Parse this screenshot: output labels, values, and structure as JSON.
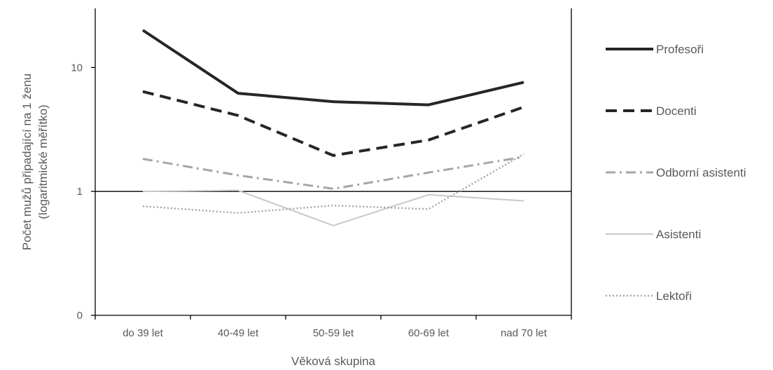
{
  "chart_data": {
    "type": "line",
    "xlabel": "Věková skupina",
    "ylabel": "Počet mužů připadající na 1 ženu",
    "ylabel_sub": "(logaritmické měřítko)",
    "y_scale": "log",
    "ylim": [
      0.1,
      30
    ],
    "yticks": [
      {
        "value": 0.1,
        "label": "0"
      },
      {
        "value": 1,
        "label": "1"
      },
      {
        "value": 10,
        "label": "10"
      }
    ],
    "categories": [
      "do 39 let",
      "40-49 let",
      "50-59 let",
      "60-69 let",
      "nad 70 let"
    ],
    "grid": false,
    "legend_position": "right",
    "series": [
      {
        "name": "Profesoři",
        "values": [
          20.0,
          6.2,
          5.3,
          5.0,
          7.6
        ],
        "color": "#262626",
        "style": "solid",
        "width": 4
      },
      {
        "name": "Docenti",
        "values": [
          6.4,
          4.1,
          1.95,
          2.6,
          4.8
        ],
        "color": "#262626",
        "style": "dashed",
        "width": 4
      },
      {
        "name": "Odborní asistenti",
        "values": [
          1.83,
          1.35,
          1.05,
          1.42,
          1.9
        ],
        "color": "#a6a6a6",
        "style": "dashdot",
        "width": 3
      },
      {
        "name": "Asistenti",
        "values": [
          1.0,
          1.02,
          0.53,
          0.94,
          0.84
        ],
        "color": "#c8c8c8",
        "style": "solid",
        "width": 2
      },
      {
        "name": "Lektoři",
        "values": [
          0.76,
          0.67,
          0.77,
          0.72,
          2.0
        ],
        "color": "#a6a6a6",
        "style": "dotted",
        "width": 2.5
      }
    ]
  }
}
